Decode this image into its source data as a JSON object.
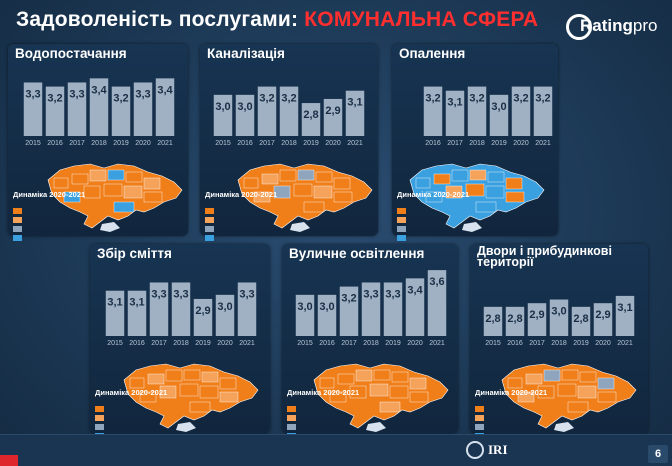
{
  "header": {
    "title_main": "Задоволеність послугами: ",
    "title_accent": "КОМУНАЛЬНА СФЕРА"
  },
  "logo": {
    "name_bold": "Rating",
    "name_thin": "pro",
    "url": ""
  },
  "colors": {
    "background": "#1d3a57",
    "panel": "#173452",
    "bar": "#9fb1c3",
    "accent_red": "#ff2f2f",
    "improved_significantly": "#f07f1a",
    "improved_slightly": "#f5a25a",
    "no_change": "#8fa4bd",
    "worsened": "#3aa0e0"
  },
  "legend": {
    "title": "Динаміка 2020-2021",
    "items": [
      {
        "label": "",
        "color": "#f07f1a"
      },
      {
        "label": "",
        "color": "#f5a25a"
      },
      {
        "label": "",
        "color": "#8fa4bd"
      },
      {
        "label": "",
        "color": "#3aa0e0"
      }
    ]
  },
  "index_caption": "",
  "chart_data": [
    {
      "type": "bar",
      "title": "Водопостачання",
      "categories": [
        "2015",
        "2016",
        "2017",
        "2018",
        "2019",
        "2020",
        "2021"
      ],
      "values": [
        3.3,
        3.2,
        3.3,
        3.4,
        3.2,
        3.3,
        3.4
      ],
      "value_labels": [
        "3,3",
        "3,2",
        "3,3",
        "3,4",
        "3,2",
        "3,3",
        "3,4"
      ],
      "xlabel": "",
      "ylabel": "",
      "ylim": [
        2.0,
        3.7
      ],
      "map_colors": "mostly orange with several light blue regions"
    },
    {
      "type": "bar",
      "title": "Каналізація",
      "categories": [
        "2015",
        "2016",
        "2017",
        "2018",
        "2019",
        "2020",
        "2021"
      ],
      "values": [
        3.0,
        3.0,
        3.2,
        3.2,
        2.8,
        2.9,
        3.1
      ],
      "value_labels": [
        "3,0",
        "3,0",
        "3,2",
        "3,2",
        "2,8",
        "2,9",
        "3,1"
      ],
      "xlabel": "",
      "ylabel": "",
      "ylim": [
        2.0,
        3.7
      ],
      "map_colors": "mostly orange with some gray regions"
    },
    {
      "type": "bar",
      "title": "Опалення",
      "categories": [
        "2016",
        "2017",
        "2018",
        "2019",
        "2020",
        "2021"
      ],
      "values": [
        3.2,
        3.1,
        3.2,
        3.0,
        3.2,
        3.2
      ],
      "value_labels": [
        "3,2",
        "3,1",
        "3,2",
        "3,0",
        "3,2",
        "3,2"
      ],
      "xlabel": "",
      "ylabel": "",
      "ylim": [
        2.0,
        3.7
      ],
      "map_colors": "mixed orange and blue regions"
    },
    {
      "type": "bar",
      "title": "Збір сміття",
      "categories": [
        "2015",
        "2016",
        "2017",
        "2018",
        "2019",
        "2020",
        "2021"
      ],
      "values": [
        3.1,
        3.1,
        3.3,
        3.3,
        2.9,
        3.0,
        3.3
      ],
      "value_labels": [
        "3,1",
        "3,1",
        "3,3",
        "3,3",
        "2,9",
        "3,0",
        "3,3"
      ],
      "xlabel": "",
      "ylabel": "",
      "ylim": [
        2.0,
        3.7
      ],
      "map_colors": "mostly orange"
    },
    {
      "type": "bar",
      "title": "Вуличне освітлення",
      "categories": [
        "2015",
        "2016",
        "2017",
        "2018",
        "2019",
        "2020",
        "2021"
      ],
      "values": [
        3.0,
        3.0,
        3.2,
        3.3,
        3.3,
        3.4,
        3.6
      ],
      "value_labels": [
        "3,0",
        "3,0",
        "3,2",
        "3,3",
        "3,3",
        "3,4",
        "3,6"
      ],
      "xlabel": "",
      "ylabel": "",
      "ylim": [
        2.0,
        3.7
      ],
      "map_colors": "mostly orange"
    },
    {
      "type": "bar",
      "title": "Двори і прибудинкові території",
      "categories": [
        "2015",
        "2016",
        "2017",
        "2018",
        "2019",
        "2020",
        "2021"
      ],
      "values": [
        2.8,
        2.8,
        2.9,
        3.0,
        2.8,
        2.9,
        3.1
      ],
      "value_labels": [
        "2,8",
        "2,8",
        "2,9",
        "3,0",
        "2,8",
        "2,9",
        "3,1"
      ],
      "xlabel": "",
      "ylabel": "",
      "ylim": [
        2.0,
        3.7
      ],
      "map_colors": "mostly orange with a few gray regions"
    }
  ],
  "footer": {
    "note": "",
    "iri_name": "IRI",
    "page_number": "6"
  }
}
